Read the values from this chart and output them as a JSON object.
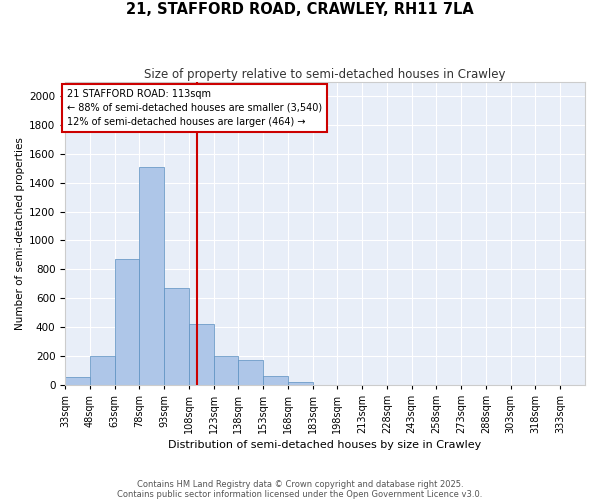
{
  "title_line1": "21, STAFFORD ROAD, CRAWLEY, RH11 7LA",
  "title_line2": "Size of property relative to semi-detached houses in Crawley",
  "xlabel": "Distribution of semi-detached houses by size in Crawley",
  "ylabel": "Number of semi-detached properties",
  "bin_labels": [
    "33sqm",
    "48sqm",
    "63sqm",
    "78sqm",
    "93sqm",
    "108sqm",
    "123sqm",
    "138sqm",
    "153sqm",
    "168sqm",
    "183sqm",
    "198sqm",
    "213sqm",
    "228sqm",
    "243sqm",
    "258sqm",
    "273sqm",
    "288sqm",
    "303sqm",
    "318sqm",
    "333sqm"
  ],
  "bin_edges": [
    33,
    48,
    63,
    78,
    93,
    108,
    123,
    138,
    153,
    168,
    183,
    198,
    213,
    228,
    243,
    258,
    273,
    288,
    303,
    318,
    333,
    348
  ],
  "bar_heights": [
    50,
    200,
    870,
    1510,
    670,
    420,
    200,
    170,
    60,
    20,
    0,
    0,
    0,
    0,
    0,
    0,
    0,
    0,
    0,
    0,
    0
  ],
  "bar_color": "#aec6e8",
  "bar_edge_color": "#5a8fc0",
  "vline_x": 113,
  "annotation_title": "21 STAFFORD ROAD: 113sqm",
  "annotation_line1": "← 88% of semi-detached houses are smaller (3,540)",
  "annotation_line2": "12% of semi-detached houses are larger (464) →",
  "annotation_box_color": "#ffffff",
  "annotation_box_edge_color": "#cc0000",
  "vline_color": "#cc0000",
  "ylim": [
    0,
    2100
  ],
  "yticks": [
    0,
    200,
    400,
    600,
    800,
    1000,
    1200,
    1400,
    1600,
    1800,
    2000
  ],
  "background_color": "#e8eef8",
  "footer_line1": "Contains HM Land Registry data © Crown copyright and database right 2025.",
  "footer_line2": "Contains public sector information licensed under the Open Government Licence v3.0."
}
